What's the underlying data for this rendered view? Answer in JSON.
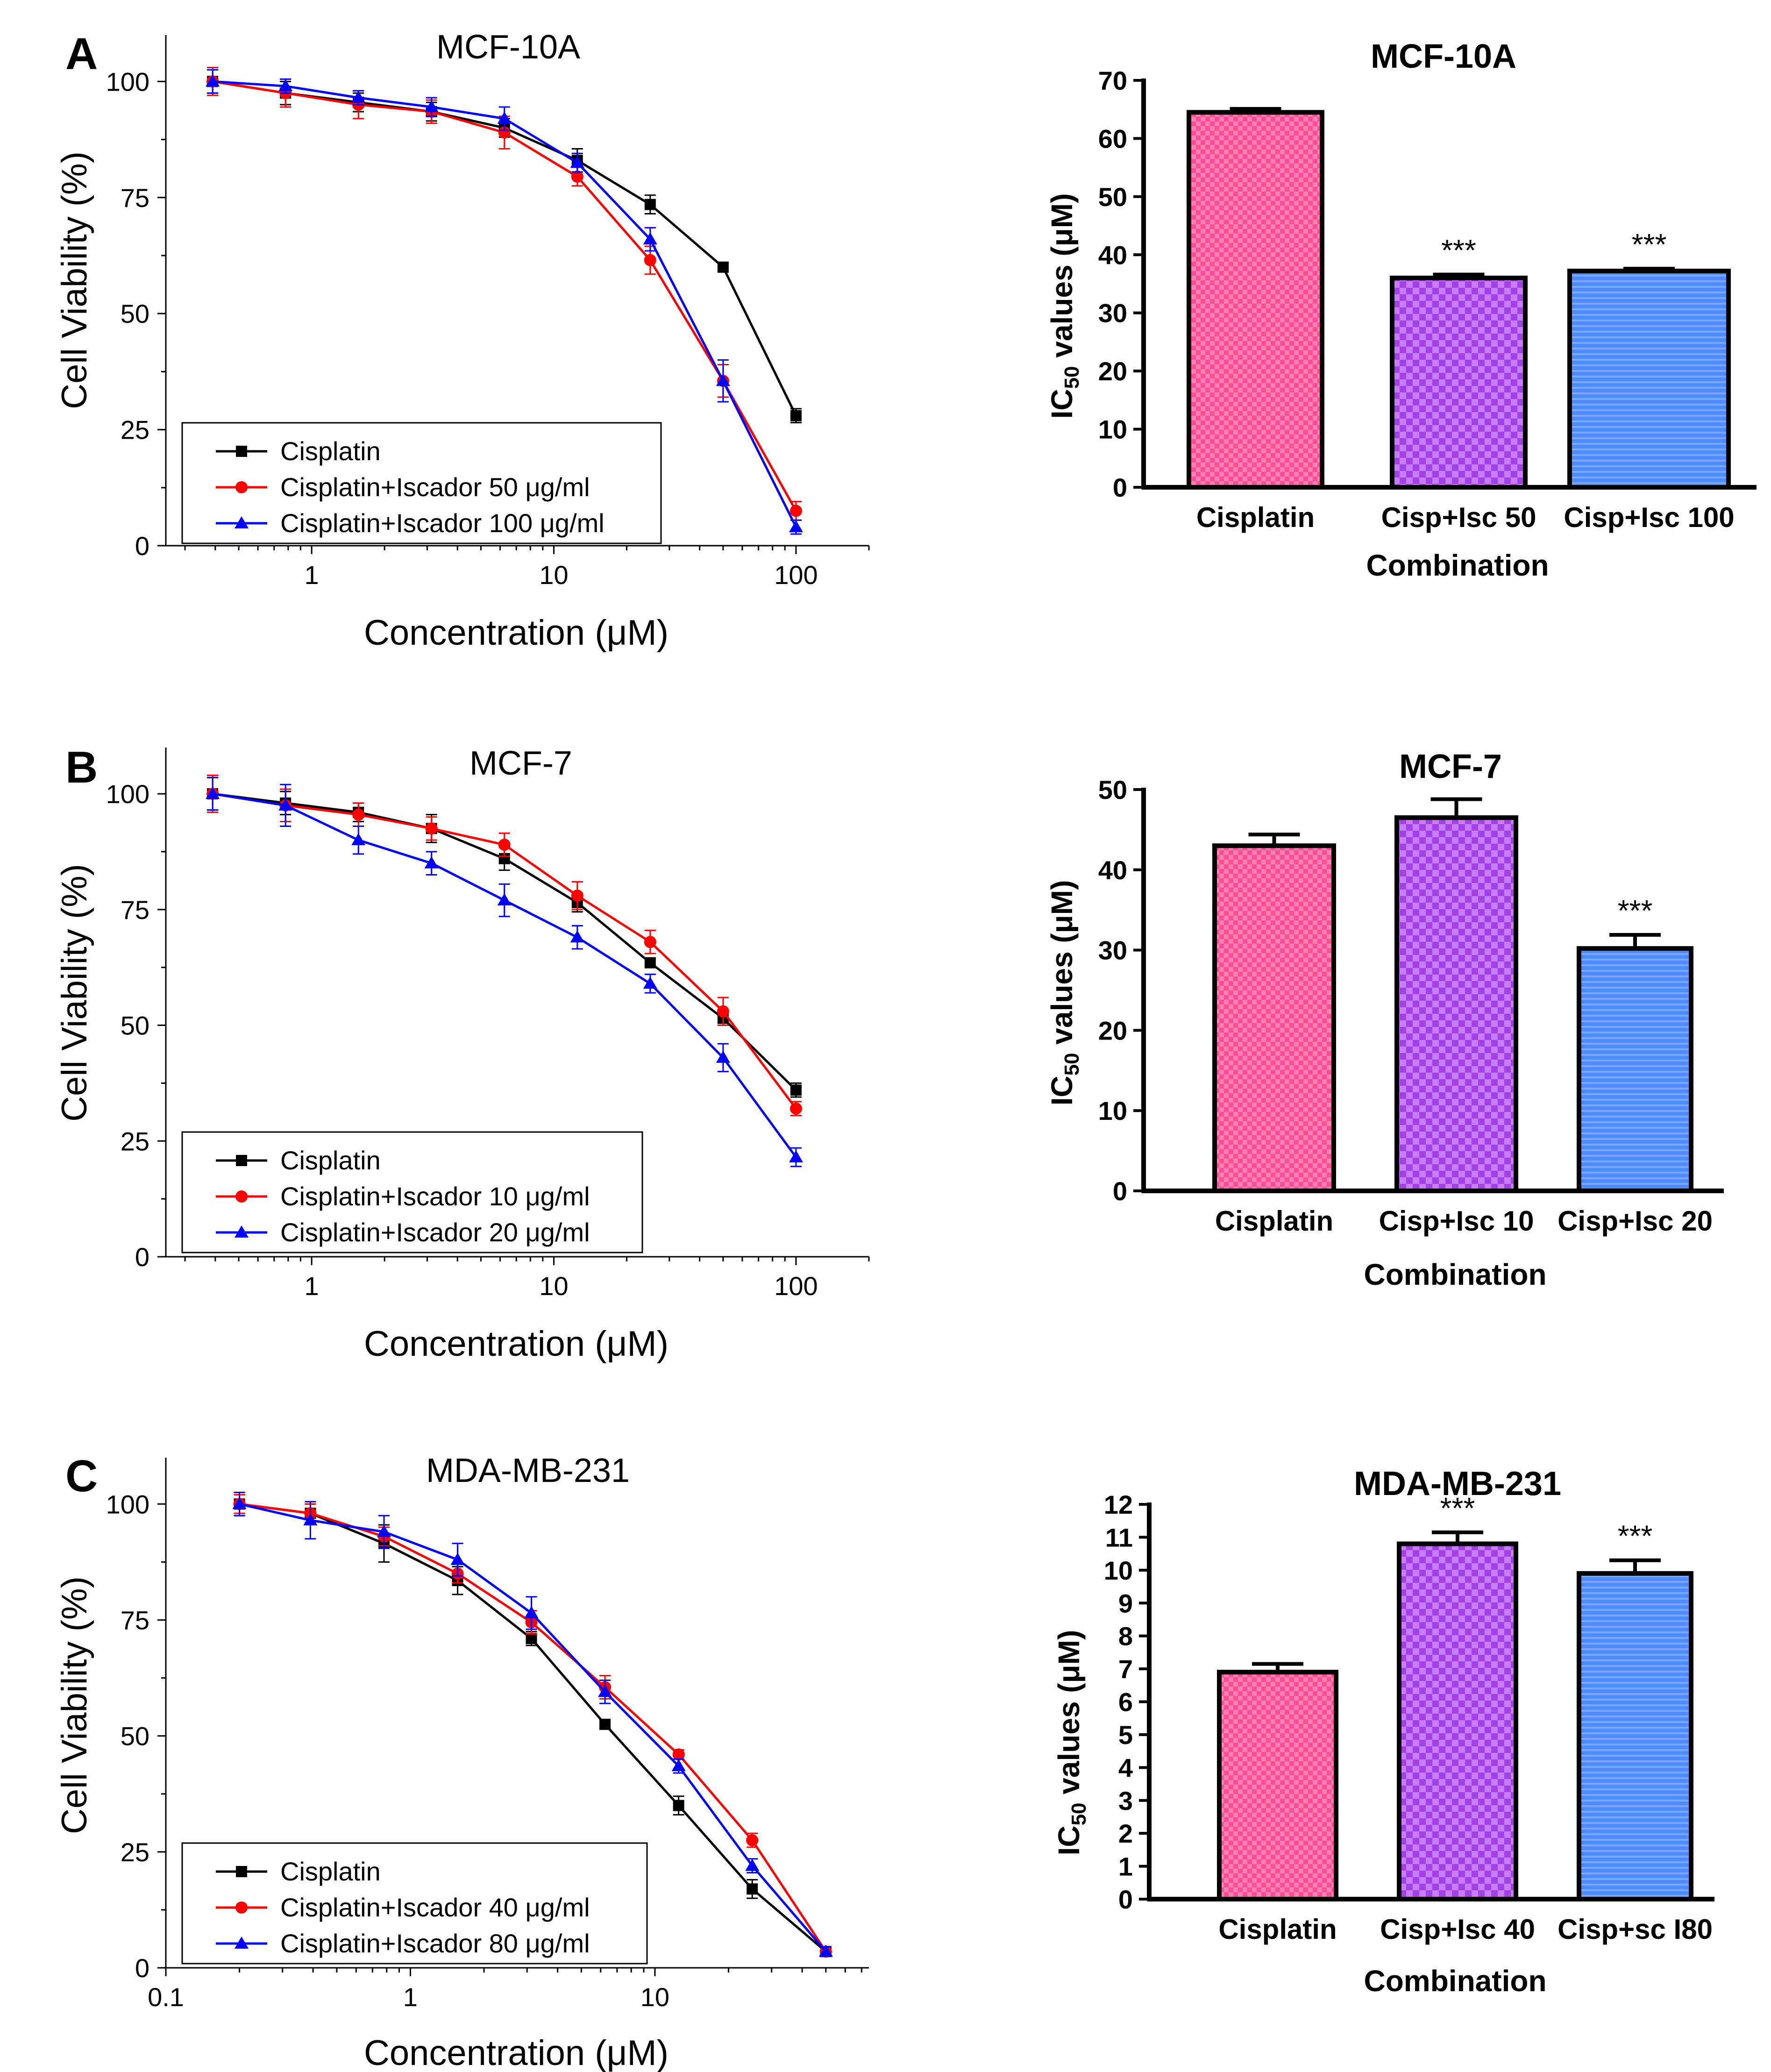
{
  "panels": [
    {
      "label": "A",
      "line": {
        "type": "line",
        "title": "MCF-10A",
        "xlabel": "Concentration (μM)",
        "ylabel": "Cell Viability (%)",
        "xscale": "log",
        "xlim": [
          0.25,
          200
        ],
        "ylim": [
          0,
          110
        ],
        "xticks": [
          1,
          10,
          100
        ],
        "xtick_labels": [
          "1",
          "10",
          "100"
        ],
        "yticks": [
          0,
          25,
          50,
          75,
          100
        ],
        "legend_position": "bottom-left",
        "series": [
          {
            "name": "Cisplatin",
            "color": "#000000",
            "marker": "square",
            "x": [
              0.39,
              0.78,
              1.56,
              3.125,
              6.25,
              12.5,
              25,
              50,
              100
            ],
            "y": [
              100,
              97.5,
              95.5,
              93.5,
              90,
              83,
              73.5,
              60,
              28
            ],
            "err": [
              2.5,
              2.5,
              2,
              2,
              2,
              2.5,
              2,
              1,
              1.5
            ]
          },
          {
            "name": "Cisplatin+Iscador 50 μg/ml",
            "color": "#ff0000",
            "marker": "circle",
            "x": [
              0.39,
              0.78,
              1.56,
              3.125,
              6.25,
              12.5,
              25,
              50,
              100
            ],
            "y": [
              100,
              97.5,
              95,
              93.5,
              89,
              79.5,
              61.5,
              35.5,
              7.5
            ],
            "err": [
              3,
              3,
              3,
              2.5,
              3.5,
              2,
              3,
              3.5,
              2
            ]
          },
          {
            "name": "Cisplatin+Iscador 100 μg/ml",
            "color": "#0000ff",
            "marker": "triangle",
            "x": [
              0.39,
              0.78,
              1.56,
              3.125,
              6.25,
              12.5,
              25,
              50,
              100
            ],
            "y": [
              100,
              99,
              96.5,
              94.5,
              92,
              82.5,
              66,
              35.5,
              4
            ],
            "err": [
              2.5,
              1.5,
              1.5,
              2,
              2.5,
              2,
              2.5,
              4.5,
              1.5
            ]
          }
        ]
      },
      "bar": {
        "type": "bar",
        "title": "MCF-10A",
        "xlabel": "Combination",
        "ylabel_main": "IC",
        "ylabel_sub": "50",
        "ylabel_rest": " values (μM)",
        "ylim": [
          0,
          70
        ],
        "yticks": [
          "0",
          "10",
          "20",
          "30",
          "40",
          "50",
          "60",
          "70"
        ],
        "categories": [
          "Cisplatin",
          "Cisp+Isc 50",
          "Cisp+Isc 100"
        ],
        "values": [
          64.5,
          36,
          37.2
        ],
        "err": [
          0.6,
          0.6,
          0.4
        ],
        "significance": [
          "",
          "***",
          "***"
        ],
        "fills": [
          "#ff4d94",
          "#a340e6",
          "#4d8cff"
        ]
      }
    },
    {
      "label": "B",
      "line": {
        "type": "line",
        "title": "MCF-7",
        "xlabel": "Concentration (μM)",
        "ylabel": "Cell Viability (%)",
        "xscale": "log",
        "xlim": [
          0.25,
          200
        ],
        "ylim": [
          0,
          110
        ],
        "xticks": [
          1,
          10,
          100
        ],
        "xtick_labels": [
          "1",
          "10",
          "100"
        ],
        "yticks": [
          0,
          25,
          50,
          75,
          100
        ],
        "legend_position": "bottom-left",
        "series": [
          {
            "name": "Cisplatin",
            "color": "#000000",
            "marker": "square",
            "x": [
              0.39,
              0.78,
              1.56,
              3.125,
              6.25,
              12.5,
              25,
              50,
              100
            ],
            "y": [
              100,
              98,
              96,
              92.5,
              86,
              76.5,
              63.5,
              51.5,
              36
            ],
            "err": [
              3.5,
              2.5,
              2,
              3,
              2.5,
              2,
              1,
              1.5,
              1.5
            ]
          },
          {
            "name": "Cisplatin+Iscador 10 μg/ml",
            "color": "#ff0000",
            "marker": "circle",
            "x": [
              0.39,
              0.78,
              1.56,
              3.125,
              6.25,
              12.5,
              25,
              50,
              100
            ],
            "y": [
              100,
              97.5,
              95.5,
              92.5,
              89,
              78,
              68,
              53,
              32
            ],
            "err": [
              4,
              3.5,
              2.5,
              2.5,
              2.5,
              3,
              2.5,
              3,
              1.5
            ]
          },
          {
            "name": "Cisplatin+Iscador 20 μg/ml",
            "color": "#0000ff",
            "marker": "triangle",
            "x": [
              0.39,
              0.78,
              1.56,
              3.125,
              6.25,
              12.5,
              25,
              50,
              100
            ],
            "y": [
              100,
              97.5,
              90,
              85,
              77,
              69,
              59,
              43,
              21.5
            ],
            "err": [
              3.5,
              4.5,
              3,
              2.5,
              3.5,
              2.5,
              2,
              3,
              2
            ]
          }
        ]
      },
      "bar": {
        "type": "bar",
        "title": "MCF-7",
        "xlabel": "Combination",
        "ylabel_main": "IC",
        "ylabel_sub": "50",
        "ylabel_rest": " values (μM)",
        "ylim": [
          0,
          50
        ],
        "yticks": [
          "0",
          "10",
          "20",
          "30",
          "40",
          "50"
        ],
        "categories": [
          "Cisplatin",
          "Cisp+Isc 10",
          "Cisp+Isc 20"
        ],
        "values": [
          43,
          46.5,
          30.2
        ],
        "err": [
          1.4,
          2.3,
          1.7
        ],
        "significance": [
          "",
          "",
          "***"
        ],
        "fills": [
          "#ff4d94",
          "#a340e6",
          "#4d8cff"
        ]
      }
    },
    {
      "label": "C",
      "line": {
        "type": "line",
        "title": "MDA-MB-231",
        "xlabel": "Concentration (μM)",
        "ylabel": "Cell Viability (%)",
        "xscale": "log",
        "xlim": [
          0.1,
          75
        ],
        "ylim": [
          0,
          110
        ],
        "xticks": [
          0.1,
          1,
          10
        ],
        "xtick_labels": [
          "0.1",
          "1",
          "10"
        ],
        "yticks": [
          0,
          25,
          50,
          75,
          100
        ],
        "legend_position": "bottom-left",
        "series": [
          {
            "name": "Cisplatin",
            "color": "#000000",
            "marker": "square",
            "x": [
              0.2,
              0.39,
              0.78,
              1.56,
              3.125,
              6.25,
              12.5,
              25,
              50
            ],
            "y": [
              100,
              98,
              91.5,
              83.5,
              71,
              52.5,
              35,
              17,
              3.5
            ],
            "err": [
              2.5,
              2,
              4,
              3,
              1.5,
              1,
              2,
              2,
              1
            ]
          },
          {
            "name": "Cisplatin+Iscador 40 μg/ml",
            "color": "#ff0000",
            "marker": "circle",
            "x": [
              0.2,
              0.39,
              0.78,
              1.56,
              3.125,
              6.25,
              12.5,
              25,
              50
            ],
            "y": [
              100,
              98,
              93,
              85,
              74.5,
              60.5,
              46,
              27.5,
              3.5
            ],
            "err": [
              2,
              2,
              2,
              2,
              2.5,
              2.5,
              1,
              1.5,
              1
            ]
          },
          {
            "name": "Cisplatin+Iscador 80 μg/ml",
            "color": "#0000ff",
            "marker": "triangle",
            "x": [
              0.2,
              0.39,
              0.78,
              1.56,
              3.125,
              6.25,
              12.5,
              25,
              50
            ],
            "y": [
              100,
              96.5,
              94,
              88,
              76.5,
              59.5,
              43.5,
              22,
              3.5
            ],
            "err": [
              2.5,
              4,
              3.5,
              3.5,
              3.5,
              2.5,
              1.5,
              1.5,
              1
            ]
          }
        ]
      },
      "bar": {
        "type": "bar",
        "title": "MDA-MB-231",
        "xlabel": "Combination",
        "ylabel_main": "IC",
        "ylabel_sub": "50",
        "ylabel_rest": " values (μM)",
        "ylim": [
          0,
          12
        ],
        "yticks": [
          "0",
          "1",
          "2",
          "3",
          "4",
          "5",
          "6",
          "7",
          "8",
          "9",
          "10",
          "11",
          "12"
        ],
        "categories": [
          "Cisplatin",
          "Cisp+Isc 40",
          "Cisp+sc I80"
        ],
        "values": [
          6.9,
          10.8,
          9.9
        ],
        "err": [
          0.25,
          0.35,
          0.4
        ],
        "significance": [
          "",
          "***",
          "***"
        ],
        "fills": [
          "#ff4d94",
          "#a340e6",
          "#4d8cff"
        ]
      }
    }
  ],
  "chart_data": [
    {
      "type": "line",
      "title": "MCF-10A",
      "xlabel": "Concentration (μM)",
      "ylabel": "Cell Viability (%)",
      "xscale": "log",
      "ylim": [
        0,
        110
      ],
      "series": [
        {
          "name": "Cisplatin",
          "x": [
            0.39,
            0.78,
            1.56,
            3.125,
            6.25,
            12.5,
            25,
            50,
            100
          ],
          "y": [
            100,
            97.5,
            95.5,
            93.5,
            90,
            83,
            73.5,
            60,
            28
          ]
        },
        {
          "name": "Cisplatin+Iscador 50 μg/ml",
          "x": [
            0.39,
            0.78,
            1.56,
            3.125,
            6.25,
            12.5,
            25,
            50,
            100
          ],
          "y": [
            100,
            97.5,
            95,
            93.5,
            89,
            79.5,
            61.5,
            35.5,
            7.5
          ]
        },
        {
          "name": "Cisplatin+Iscador 100 μg/ml",
          "x": [
            0.39,
            0.78,
            1.56,
            3.125,
            6.25,
            12.5,
            25,
            50,
            100
          ],
          "y": [
            100,
            99,
            96.5,
            94.5,
            92,
            82.5,
            66,
            35.5,
            4
          ]
        }
      ]
    },
    {
      "type": "bar",
      "title": "MCF-10A",
      "xlabel": "Combination",
      "ylabel": "IC50 values (μM)",
      "ylim": [
        0,
        70
      ],
      "categories": [
        "Cisplatin",
        "Cisp+Isc 50",
        "Cisp+Isc 100"
      ],
      "values": [
        64.5,
        36,
        37.2
      ]
    },
    {
      "type": "line",
      "title": "MCF-7",
      "xlabel": "Concentration (μM)",
      "ylabel": "Cell Viability (%)",
      "xscale": "log",
      "ylim": [
        0,
        110
      ],
      "series": [
        {
          "name": "Cisplatin",
          "x": [
            0.39,
            0.78,
            1.56,
            3.125,
            6.25,
            12.5,
            25,
            50,
            100
          ],
          "y": [
            100,
            98,
            96,
            92.5,
            86,
            76.5,
            63.5,
            51.5,
            36
          ]
        },
        {
          "name": "Cisplatin+Iscador 10 μg/ml",
          "x": [
            0.39,
            0.78,
            1.56,
            3.125,
            6.25,
            12.5,
            25,
            50,
            100
          ],
          "y": [
            100,
            97.5,
            95.5,
            92.5,
            89,
            78,
            68,
            53,
            32
          ]
        },
        {
          "name": "Cisplatin+Iscador 20 μg/ml",
          "x": [
            0.39,
            0.78,
            1.56,
            3.125,
            6.25,
            12.5,
            25,
            50,
            100
          ],
          "y": [
            100,
            97.5,
            90,
            85,
            77,
            69,
            59,
            43,
            21.5
          ]
        }
      ]
    },
    {
      "type": "bar",
      "title": "MCF-7",
      "xlabel": "Combination",
      "ylabel": "IC50 values (μM)",
      "ylim": [
        0,
        50
      ],
      "categories": [
        "Cisplatin",
        "Cisp+Isc 10",
        "Cisp+Isc 20"
      ],
      "values": [
        43,
        46.5,
        30.2
      ]
    },
    {
      "type": "line",
      "title": "MDA-MB-231",
      "xlabel": "Concentration (μM)",
      "ylabel": "Cell Viability (%)",
      "xscale": "log",
      "ylim": [
        0,
        110
      ],
      "series": [
        {
          "name": "Cisplatin",
          "x": [
            0.2,
            0.39,
            0.78,
            1.56,
            3.125,
            6.25,
            12.5,
            25,
            50
          ],
          "y": [
            100,
            98,
            91.5,
            83.5,
            71,
            52.5,
            35,
            17,
            3.5
          ]
        },
        {
          "name": "Cisplatin+Iscador 40 μg/ml",
          "x": [
            0.2,
            0.39,
            0.78,
            1.56,
            3.125,
            6.25,
            12.5,
            25,
            50
          ],
          "y": [
            100,
            98,
            93,
            85,
            74.5,
            60.5,
            46,
            27.5,
            3.5
          ]
        },
        {
          "name": "Cisplatin+Iscador 80 μg/ml",
          "x": [
            0.2,
            0.39,
            0.78,
            1.56,
            3.125,
            6.25,
            12.5,
            25,
            50
          ],
          "y": [
            100,
            96.5,
            94,
            88,
            76.5,
            59.5,
            43.5,
            22,
            3.5
          ]
        }
      ]
    },
    {
      "type": "bar",
      "title": "MDA-MB-231",
      "xlabel": "Combination",
      "ylabel": "IC50 values (μM)",
      "ylim": [
        0,
        12
      ],
      "categories": [
        "Cisplatin",
        "Cisp+Isc 40",
        "Cisp+sc I80"
      ],
      "values": [
        6.9,
        10.8,
        9.9
      ]
    }
  ]
}
